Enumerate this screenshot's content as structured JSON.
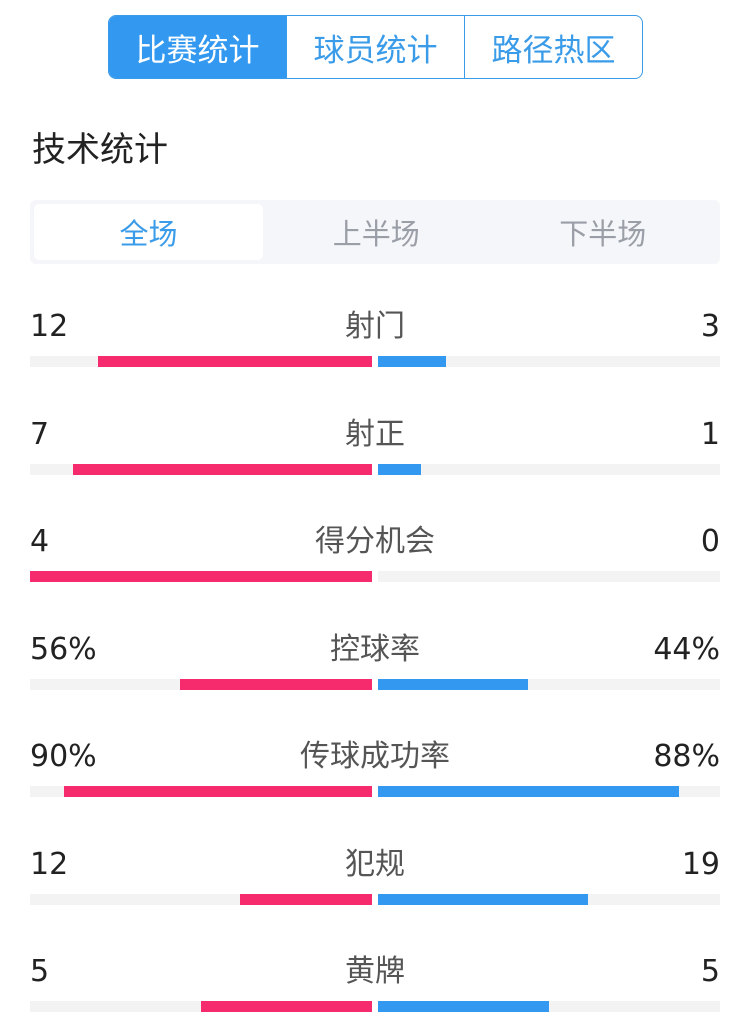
{
  "top_tabs": [
    "比赛统计",
    "球员统计",
    "路径热区"
  ],
  "section_title": "技术统计",
  "period_tabs": [
    "全场",
    "上半场",
    "下半场"
  ],
  "colors": {
    "home": "#f52b6e",
    "away": "#3399f0",
    "accent": "#3399f0"
  },
  "stats": [
    {
      "label": "射门",
      "home": "12",
      "away": "3"
    },
    {
      "label": "射正",
      "home": "7",
      "away": "1"
    },
    {
      "label": "得分机会",
      "home": "4",
      "away": "0"
    },
    {
      "label": "控球率",
      "home": "56%",
      "away": "44%"
    },
    {
      "label": "传球成功率",
      "home": "90%",
      "away": "88%"
    },
    {
      "label": "犯规",
      "home": "12",
      "away": "19"
    },
    {
      "label": "黄牌",
      "home": "5",
      "away": "5"
    }
  ]
}
